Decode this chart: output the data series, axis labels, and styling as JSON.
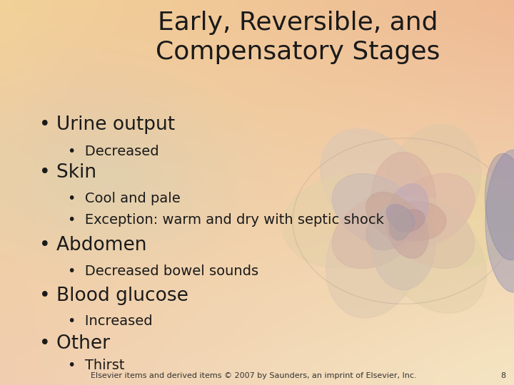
{
  "title_line1": "Early, Reversible, and",
  "title_line2": "Compensatory Stages",
  "title_fontsize": 26,
  "title_color": "#1a1a1a",
  "bullet1_main": "Urine output",
  "bullet1_subs": [
    "Decreased"
  ],
  "bullet2_main": "Skin",
  "bullet2_subs": [
    "Cool and pale",
    "Exception: warm and dry with septic shock"
  ],
  "bullet3_main": "Abdomen",
  "bullet3_subs": [
    "Decreased bowel sounds"
  ],
  "bullet4_main": "Blood glucose",
  "bullet4_subs": [
    "Increased"
  ],
  "bullet5_main": "Other",
  "bullet5_subs": [
    "Thirst"
  ],
  "main_fontsize": 19,
  "sub_fontsize": 14,
  "footer": "Elsevier items and derived items © 2007 by Saunders, an imprint of Elsevier, Inc.",
  "page_num": "8",
  "footer_fontsize": 8,
  "text_color": "#1a1a1a",
  "figsize": [
    7.2,
    5.4
  ],
  "dpi": 100
}
